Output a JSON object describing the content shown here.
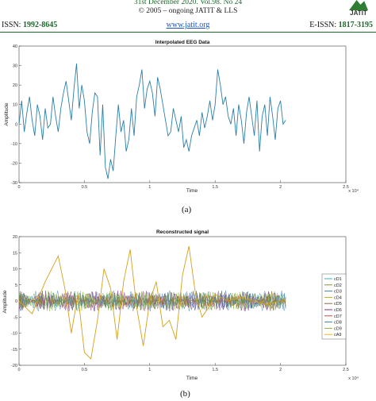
{
  "header": {
    "line1": "31st December 2020. Vol.98. No 24",
    "line2": "© 2005 – ongoing  JATIT & LLS",
    "logo_text": "JATIT",
    "issn_label": "ISSN:",
    "issn_value": "1992-8645",
    "url": "www.jatit.org",
    "eissn_label": "E-ISSN:",
    "eissn_value": "1817-3195"
  },
  "colors": {
    "header_green": "#1a6b2a",
    "link_blue": "#1a55c6",
    "eeg_line": "#2a7fa8"
  },
  "chart_data": [
    {
      "type": "line",
      "title": "Interpolated EEG Data",
      "xlabel": "Time",
      "ylabel": "Amplitude",
      "x_exponent": "x 10⁴",
      "xlim": [
        0,
        2.5
      ],
      "ylim": [
        -30,
        40
      ],
      "xticks": [
        0,
        0.5,
        1,
        1.5,
        2,
        2.5
      ],
      "yticks": [
        -30,
        -20,
        -10,
        0,
        10,
        20,
        30,
        40
      ],
      "grid": false,
      "series": [
        {
          "color": "#2a7fa8",
          "x": [
            0,
            0.02,
            0.04,
            0.06,
            0.08,
            0.1,
            0.12,
            0.14,
            0.16,
            0.18,
            0.2,
            0.22,
            0.24,
            0.26,
            0.28,
            0.3,
            0.32,
            0.34,
            0.36,
            0.38,
            0.4,
            0.42,
            0.44,
            0.46,
            0.48,
            0.5,
            0.52,
            0.54,
            0.56,
            0.58,
            0.6,
            0.62,
            0.64,
            0.66,
            0.68,
            0.7,
            0.72,
            0.74,
            0.76,
            0.78,
            0.8,
            0.82,
            0.84,
            0.86,
            0.88,
            0.9,
            0.92,
            0.94,
            0.96,
            0.98,
            1.0,
            1.02,
            1.04,
            1.06,
            1.08,
            1.1,
            1.12,
            1.14,
            1.16,
            1.18,
            1.2,
            1.22,
            1.24,
            1.26,
            1.28,
            1.3,
            1.32,
            1.34,
            1.36,
            1.38,
            1.4,
            1.42,
            1.44,
            1.46,
            1.48,
            1.5,
            1.52,
            1.54,
            1.56,
            1.58,
            1.6,
            1.62,
            1.64,
            1.66,
            1.68,
            1.7,
            1.72,
            1.74,
            1.76,
            1.78,
            1.8,
            1.82,
            1.84,
            1.86,
            1.88,
            1.9,
            1.92,
            1.94,
            1.96,
            1.98,
            2.0,
            2.02,
            2.04
          ],
          "y": [
            0,
            12,
            -4,
            6,
            14,
            2,
            -6,
            10,
            4,
            -8,
            8,
            -2,
            0,
            14,
            4,
            -4,
            8,
            16,
            22,
            12,
            2,
            18,
            31,
            8,
            20,
            12,
            -4,
            -10,
            6,
            16,
            14,
            -16,
            10,
            -22,
            -28,
            -18,
            -24,
            -6,
            10,
            -4,
            2,
            -14,
            -8,
            8,
            -6,
            14,
            20,
            28,
            8,
            18,
            22,
            16,
            4,
            24,
            18,
            10,
            2,
            -6,
            -4,
            8,
            2,
            -4,
            4,
            -12,
            -8,
            -14,
            -6,
            -2,
            2,
            -6,
            6,
            -2,
            4,
            12,
            2,
            10,
            28,
            20,
            10,
            14,
            4,
            0,
            8,
            -6,
            10,
            2,
            -10,
            6,
            14,
            4,
            -6,
            12,
            -14,
            4,
            10,
            -6,
            14,
            4,
            -8,
            8,
            12,
            0,
            2
          ]
        }
      ],
      "caption": "(a)"
    },
    {
      "type": "line",
      "title": "Reconstructed signal",
      "xlabel": "Time",
      "ylabel": "Amplitude",
      "x_exponent": "x 10⁴",
      "xlim": [
        0,
        2.5
      ],
      "ylim": [
        -20,
        20
      ],
      "xticks": [
        0,
        0.5,
        1,
        1.5,
        2,
        2.5
      ],
      "yticks": [
        -20,
        -15,
        -10,
        -5,
        0,
        5,
        10,
        15,
        20
      ],
      "grid": false,
      "legend": "right",
      "legend_labels": [
        "cD1",
        "cD2",
        "cD3",
        "cD4",
        "cD5",
        "cD6",
        "cD7",
        "cD8",
        "cD9",
        "cA9"
      ],
      "legend_colors": [
        "#2ca6b0",
        "#6b8e23",
        "#2a7fa8",
        "#c8a200",
        "#7a5c3a",
        "#7a1a7a",
        "#c0392b",
        "#2c7bb6",
        "#7fae2e",
        "#e0b000"
      ],
      "series_summary": {
        "cA9": {
          "color": "#d4a017",
          "x": [
            0,
            0.1,
            0.2,
            0.3,
            0.35,
            0.4,
            0.45,
            0.5,
            0.55,
            0.6,
            0.65,
            0.7,
            0.75,
            0.8,
            0.85,
            0.9,
            0.95,
            1.0,
            1.05,
            1.1,
            1.15,
            1.2,
            1.25,
            1.3,
            1.35,
            1.4,
            1.45,
            1.5,
            1.6,
            1.7,
            1.8,
            1.9,
            2.0,
            2.04
          ],
          "y": [
            0,
            -4,
            6,
            14,
            4,
            -10,
            2,
            -16,
            -18,
            -6,
            10,
            4,
            -12,
            6,
            16,
            -2,
            -14,
            0,
            6,
            -8,
            -6,
            -12,
            8,
            17,
            2,
            -5,
            -2,
            2,
            0,
            1,
            0,
            -1,
            0,
            0
          ]
        }
      },
      "detail_amplitude": 5,
      "caption": "(b)"
    }
  ]
}
